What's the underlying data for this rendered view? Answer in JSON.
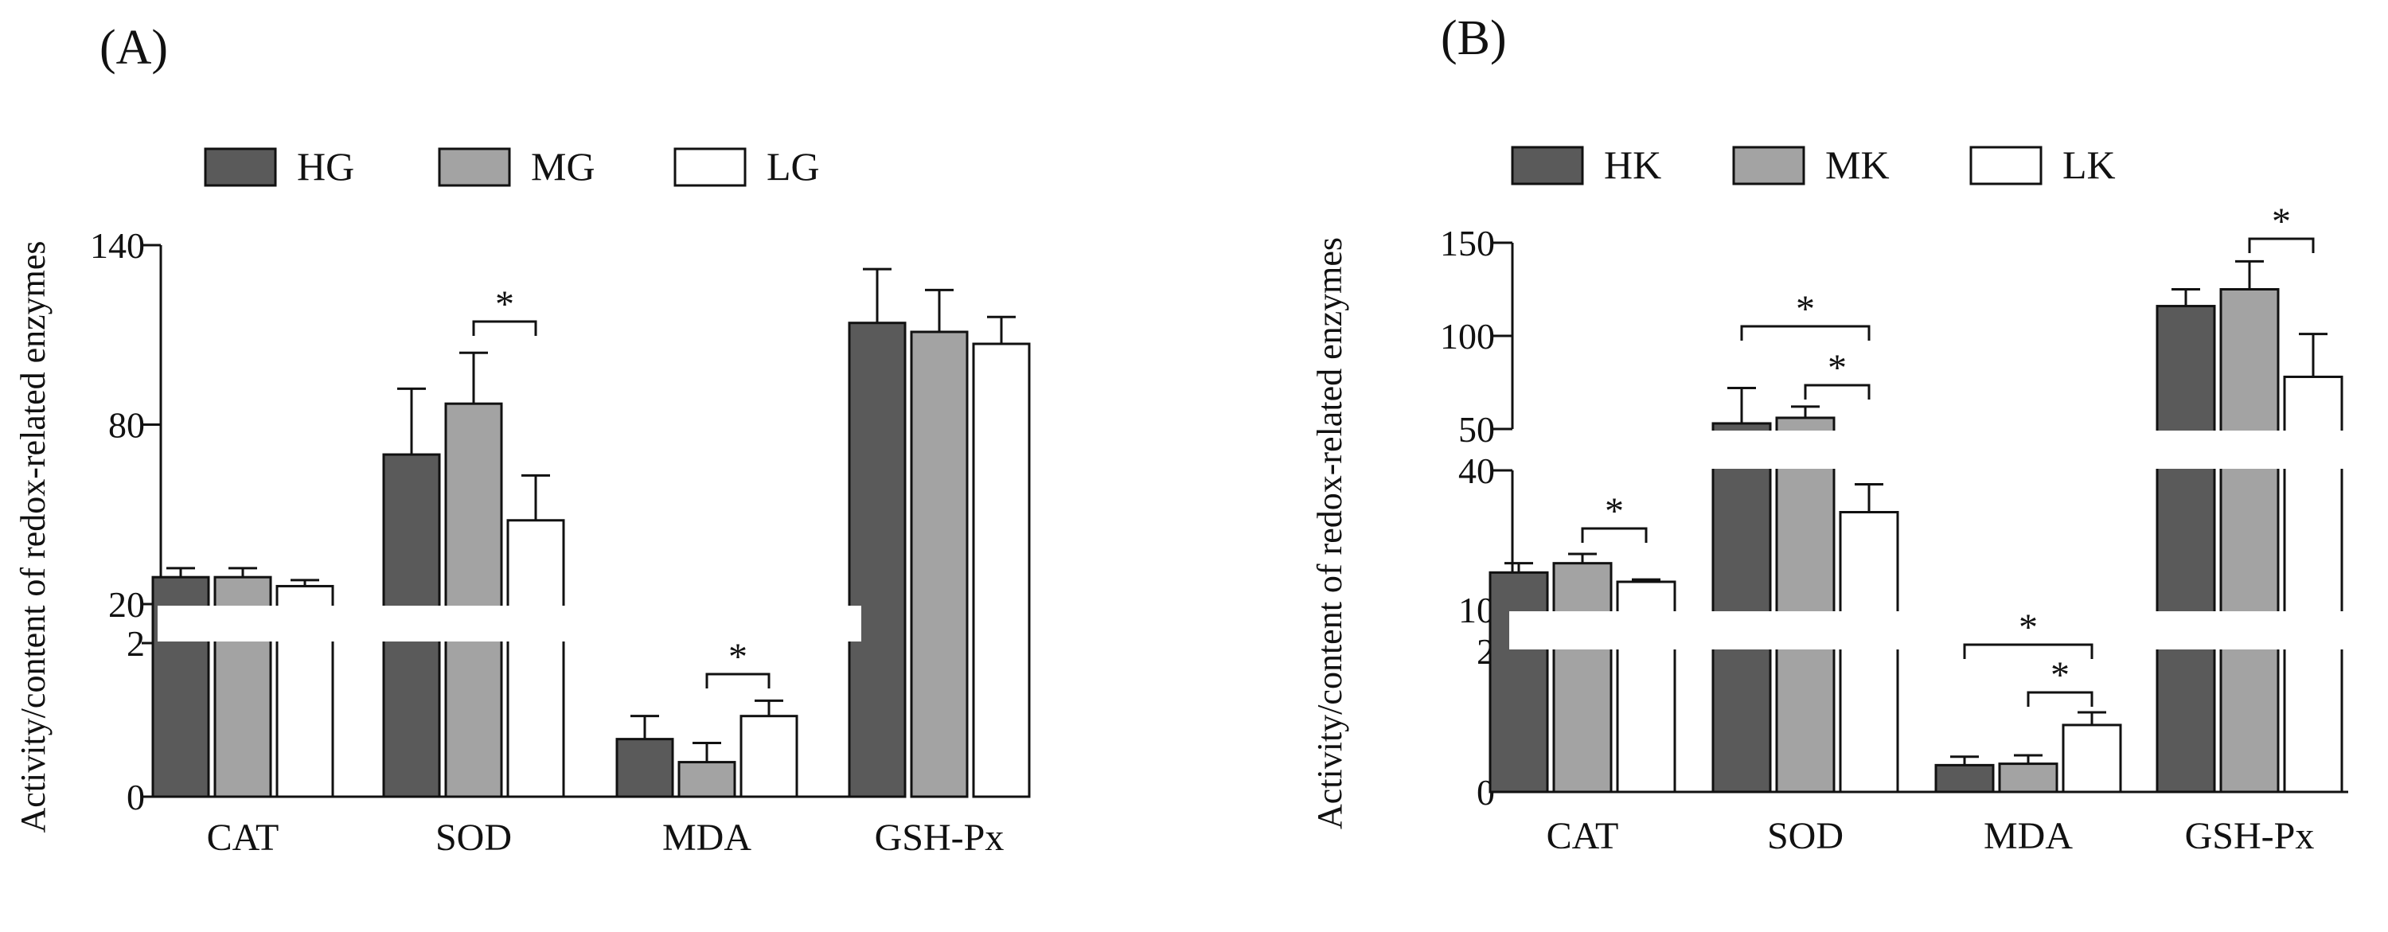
{
  "y_label": "Activity/content of redox-related enzymes",
  "colors": {
    "dark": "#5a5a5a",
    "medium": "#a3a3a3",
    "light": "#ffffff",
    "stroke": "#111111"
  },
  "chart_data": [
    {
      "type": "bar",
      "panel": "(A)",
      "categories": [
        "CAT",
        "SOD",
        "MDA",
        "GSH-Px"
      ],
      "series": [
        {
          "name": "HG",
          "values": [
            29,
            70,
            0.75,
            114
          ],
          "errors": [
            3,
            22,
            0.3,
            18
          ]
        },
        {
          "name": "MG",
          "values": [
            29,
            87,
            0.45,
            111
          ],
          "errors": [
            3,
            17,
            0.25,
            14
          ]
        },
        {
          "name": "LG",
          "values": [
            26,
            48,
            1.05,
            107
          ],
          "errors": [
            2,
            15,
            0.2,
            9
          ]
        }
      ],
      "ylabel": "Activity/content of redox-related enzymes",
      "broken_axis": [
        {
          "range": [
            0,
            2
          ],
          "ticks": [
            "0",
            "2"
          ]
        },
        {
          "range": [
            20,
            140
          ],
          "ticks": [
            "20",
            "80",
            "140"
          ]
        }
      ],
      "significance": [
        {
          "category": "SOD",
          "between": [
            "MG",
            "LG"
          ],
          "label": "*"
        },
        {
          "category": "MDA",
          "between": [
            "MG",
            "LG"
          ],
          "label": "*"
        }
      ]
    },
    {
      "type": "bar",
      "panel": "(B)",
      "categories": [
        "CAT",
        "SOD",
        "MDA",
        "GSH-Px"
      ],
      "series": [
        {
          "name": "HK",
          "values": [
            18,
            53,
            0.38,
            116
          ],
          "errors": [
            2,
            19,
            0.12,
            9
          ]
        },
        {
          "name": "MK",
          "values": [
            20,
            56,
            0.4,
            125
          ],
          "errors": [
            2,
            6,
            0.12,
            15
          ]
        },
        {
          "name": "LK",
          "values": [
            16,
            31,
            0.95,
            78
          ],
          "errors": [
            0.5,
            6,
            0.18,
            23
          ]
        }
      ],
      "ylabel": "Activity/content of redox-related enzymes",
      "broken_axis": [
        {
          "range": [
            0,
            2
          ],
          "ticks": [
            "0",
            "2"
          ]
        },
        {
          "range": [
            10,
            40
          ],
          "ticks": [
            "10",
            "40"
          ]
        },
        {
          "range": [
            50,
            150
          ],
          "ticks": [
            "50",
            "100",
            "150"
          ]
        }
      ],
      "significance": [
        {
          "category": "CAT",
          "between": [
            "MK",
            "LK"
          ],
          "label": "*"
        },
        {
          "category": "SOD",
          "between": [
            "HK",
            "LK"
          ],
          "label": "*"
        },
        {
          "category": "SOD",
          "between": [
            "MK",
            "LK"
          ],
          "label": "*"
        },
        {
          "category": "MDA",
          "between": [
            "HK",
            "LK"
          ],
          "label": "*"
        },
        {
          "category": "MDA",
          "between": [
            "MK",
            "LK"
          ],
          "label": "*"
        },
        {
          "category": "GSH-Px",
          "between": [
            "MK",
            "LK"
          ],
          "label": "*"
        }
      ]
    }
  ]
}
